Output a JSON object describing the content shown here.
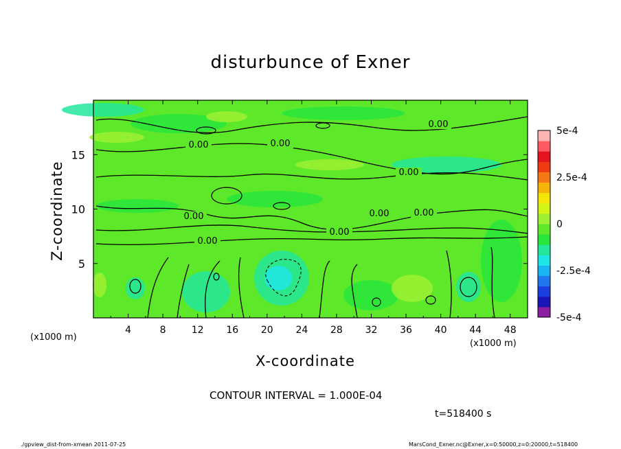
{
  "chart_data": {
    "type": "heatmap",
    "title": "disturbunce of Exner",
    "xlabel": "X-coordinate",
    "ylabel": "Z-coordinate",
    "x_unit_left": "(x1000 m)",
    "x_unit_right": "(x1000 m)",
    "xlim": [
      0,
      50
    ],
    "ylim": [
      0,
      20
    ],
    "x_ticks": [
      "4",
      "8",
      "12",
      "16",
      "20",
      "24",
      "28",
      "32",
      "36",
      "40",
      "44",
      "48"
    ],
    "y_ticks": [
      "5",
      "10",
      "15"
    ],
    "colorbar": {
      "range": [
        -0.0005,
        0.0005
      ],
      "tick_labels": [
        "5e-4",
        "2.5e-4",
        "0",
        "-2.5e-4",
        "-5e-4"
      ],
      "colors": [
        "#8b1fa0",
        "#1a16b8",
        "#1a3ee0",
        "#1f78f0",
        "#19b4f2",
        "#1ee6e6",
        "#22e69a",
        "#28e63c",
        "#5ee82a",
        "#9ef032",
        "#d2f514",
        "#f5e60a",
        "#f5b40a",
        "#f57814",
        "#f03c14",
        "#e6141e",
        "#ff5a64",
        "#ffb4b4"
      ]
    },
    "contour_labels": [
      "0.00",
      "0.00",
      "0.00",
      "0.00",
      "0.00",
      "0.00",
      "0.00",
      "0.00",
      "0.00"
    ],
    "contour_interval": "CONTOUR INTERVAL = 1.000E-04",
    "time": "t=518400 s"
  },
  "footer": {
    "left": "./gpview_dist-from-xmean   2011-07-25",
    "right": "MarsCond_Exner.nc@Exner,x=0:50000,z=0:20000,t=518400"
  }
}
